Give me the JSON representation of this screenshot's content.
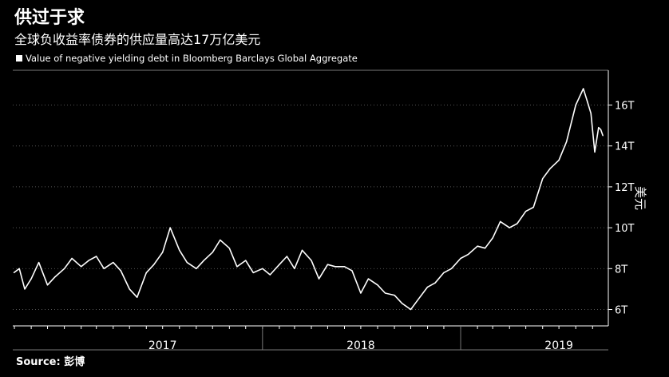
{
  "header": {
    "title": "供过于求",
    "subtitle": "全球负收益率债券的供应量高达17万亿美元"
  },
  "legend": {
    "label": "Value of negative yielding debt in Bloomberg Barclays Global Aggregate"
  },
  "source": "Source: 彭博",
  "colors": {
    "background": "#000000",
    "line": "#ffffff",
    "grid": "#555555",
    "text": "#ffffff"
  },
  "chart_data": {
    "type": "line",
    "title": "",
    "xlabel": "",
    "ylabel": "美元",
    "ylim": [
      5.2,
      17.7
    ],
    "yticks": [
      {
        "value": 6,
        "label": "6T"
      },
      {
        "value": 8,
        "label": "8T"
      },
      {
        "value": 10,
        "label": "10T"
      },
      {
        "value": 12,
        "label": "12T"
      },
      {
        "value": 14,
        "label": "14T"
      },
      {
        "value": 16,
        "label": "16T"
      }
    ],
    "xlim": [
      "2016-09-28",
      "2019-09-30"
    ],
    "xticks": [
      {
        "date": "2017-07-01",
        "label": "2017"
      },
      {
        "date": "2018-07-01",
        "label": "2018"
      },
      {
        "date": "2019-07-01",
        "label": "2019"
      }
    ],
    "xtick_dividers": [
      "2018-01-01",
      "2019-01-01"
    ],
    "grid": "horizontal",
    "series": [
      {
        "name": "Value of negative yielding debt in Bloomberg Barclays Global Aggregate",
        "x": [
          "2016-09-30",
          "2016-10-10",
          "2016-10-20",
          "2016-11-01",
          "2016-11-15",
          "2016-12-01",
          "2016-12-15",
          "2017-01-01",
          "2017-01-15",
          "2017-02-01",
          "2017-02-15",
          "2017-03-01",
          "2017-03-15",
          "2017-04-01",
          "2017-04-15",
          "2017-05-01",
          "2017-05-15",
          "2017-06-01",
          "2017-06-15",
          "2017-07-01",
          "2017-07-15",
          "2017-08-01",
          "2017-08-15",
          "2017-09-01",
          "2017-09-15",
          "2017-10-01",
          "2017-10-15",
          "2017-11-01",
          "2017-11-15",
          "2017-12-01",
          "2017-12-15",
          "2018-01-01",
          "2018-01-15",
          "2018-02-01",
          "2018-02-15",
          "2018-03-01",
          "2018-03-15",
          "2018-04-01",
          "2018-04-15",
          "2018-05-01",
          "2018-05-15",
          "2018-06-01",
          "2018-06-15",
          "2018-07-01",
          "2018-07-15",
          "2018-08-01",
          "2018-08-15",
          "2018-09-01",
          "2018-09-15",
          "2018-10-01",
          "2018-10-15",
          "2018-11-01",
          "2018-11-15",
          "2018-12-01",
          "2018-12-15",
          "2019-01-01",
          "2019-01-15",
          "2019-02-01",
          "2019-02-15",
          "2019-03-01",
          "2019-03-15",
          "2019-04-01",
          "2019-04-15",
          "2019-05-01",
          "2019-05-15",
          "2019-06-01",
          "2019-06-15",
          "2019-07-01",
          "2019-07-15",
          "2019-08-01",
          "2019-08-15",
          "2019-08-22",
          "2019-08-29",
          "2019-09-05",
          "2019-09-12",
          "2019-09-16",
          "2019-09-20"
        ],
        "values": [
          7.8,
          8.0,
          7.0,
          7.5,
          8.3,
          7.2,
          7.6,
          8.0,
          8.5,
          8.1,
          8.4,
          8.6,
          8.0,
          8.3,
          7.9,
          7.0,
          6.6,
          7.8,
          8.2,
          8.8,
          10.0,
          8.9,
          8.3,
          8.0,
          8.4,
          8.8,
          9.4,
          9.0,
          8.1,
          8.4,
          7.8,
          8.0,
          7.7,
          8.2,
          8.6,
          8.0,
          8.9,
          8.4,
          7.5,
          8.2,
          8.1,
          8.1,
          7.9,
          6.8,
          7.5,
          7.2,
          6.8,
          6.7,
          6.3,
          6.0,
          6.5,
          7.1,
          7.3,
          7.8,
          8.0,
          8.5,
          8.7,
          9.1,
          9.0,
          9.5,
          10.3,
          10.0,
          10.2,
          10.8,
          11.0,
          12.4,
          12.9,
          13.3,
          14.2,
          16.0,
          16.8,
          16.2,
          15.6,
          13.7,
          14.9,
          14.8,
          14.5
        ]
      }
    ]
  }
}
